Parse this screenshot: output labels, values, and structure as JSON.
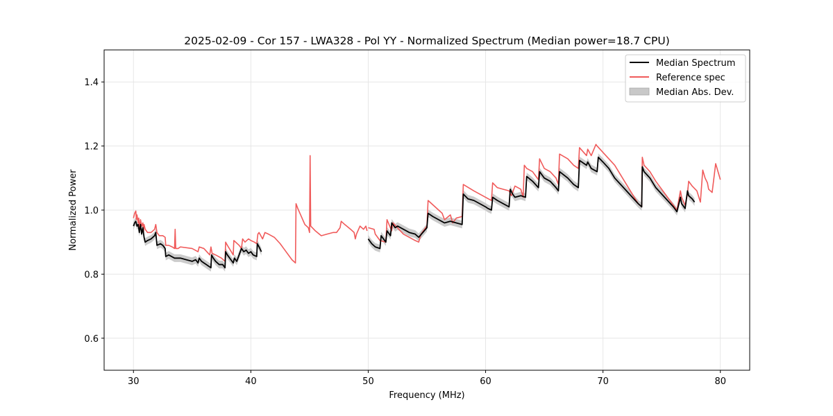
{
  "chart_data": {
    "type": "line",
    "title": "2025-02-09 - Cor 157 - LWA328 - Pol YY - Normalized Spectrum (Median power=18.7 CPU)",
    "xlabel": "Frequency (MHz)",
    "ylabel": "Normalized Power",
    "xlim": [
      27.5,
      82.5
    ],
    "ylim": [
      0.5,
      1.5
    ],
    "xticks": [
      30,
      40,
      50,
      60,
      70,
      80
    ],
    "yticks": [
      0.6,
      0.8,
      1.0,
      1.2,
      1.4
    ],
    "xtick_labels": [
      "30",
      "40",
      "50",
      "60",
      "70",
      "80"
    ],
    "ytick_labels": [
      "0.6",
      "0.8",
      "1.0",
      "1.2",
      "1.4"
    ],
    "grid": true,
    "legend_position": "top-right",
    "legend": [
      {
        "label": "Median Spectrum",
        "kind": "line",
        "color": "#000000"
      },
      {
        "label": "Reference spec",
        "kind": "line",
        "color": "#f05a5a"
      },
      {
        "label": "Median Abs. Dev.",
        "kind": "patch",
        "color": "#c8c8c8"
      }
    ],
    "series": [
      {
        "name": "Reference spec",
        "color": "#f05a5a",
        "segments": [
          {
            "x": [
              30.0,
              30.1,
              30.2,
              30.25,
              30.3,
              30.4,
              30.45,
              30.5,
              30.6,
              30.7,
              30.8,
              30.85,
              30.9,
              31.0,
              31.1,
              31.2,
              31.5,
              31.8,
              31.9,
              32.0,
              32.2,
              32.5,
              32.7,
              32.75,
              33.0,
              33.3,
              33.5,
              33.55,
              33.6,
              33.8,
              34.0,
              35.0,
              35.5,
              35.6,
              36.0,
              36.5,
              36.6,
              36.7,
              37.0,
              37.5,
              37.8,
              37.85,
              38.0,
              38.5,
              38.55,
              39.0,
              39.2,
              39.3,
              39.5,
              39.8,
              40.0,
              40.3,
              40.5,
              40.6,
              40.7,
              41.0,
              41.2,
              41.5,
              42.0,
              42.5,
              42.8,
              43.0,
              43.5,
              43.8,
              43.85,
              44.0,
              44.3,
              44.6,
              44.9,
              45.0,
              45.05,
              45.1,
              45.5,
              46.0,
              46.5,
              47.0,
              47.3,
              47.6,
              47.7,
              48.0,
              48.5,
              48.8,
              48.9,
              49.0,
              49.3,
              49.6,
              49.8,
              49.9
            ],
            "y": [
              0.975,
              0.99,
              0.997,
              0.97,
              0.985,
              0.96,
              0.975,
              0.94,
              0.97,
              0.95,
              0.96,
              0.93,
              0.955,
              0.94,
              0.935,
              0.93,
              0.93,
              0.94,
              0.955,
              0.93,
              0.92,
              0.92,
              0.915,
              0.89,
              0.89,
              0.885,
              0.88,
              0.94,
              0.88,
              0.88,
              0.885,
              0.88,
              0.87,
              0.885,
              0.88,
              0.86,
              0.885,
              0.865,
              0.86,
              0.85,
              0.84,
              0.9,
              0.89,
              0.86,
              0.905,
              0.89,
              0.88,
              0.91,
              0.9,
              0.91,
              0.905,
              0.9,
              0.895,
              0.925,
              0.93,
              0.91,
              0.93,
              0.925,
              0.915,
              0.895,
              0.88,
              0.87,
              0.845,
              0.835,
              1.02,
              1.005,
              0.98,
              0.955,
              0.945,
              0.93,
              1.17,
              0.95,
              0.935,
              0.92,
              0.925,
              0.93,
              0.93,
              0.945,
              0.965,
              0.955,
              0.94,
              0.93,
              0.91,
              0.925,
              0.95,
              0.94,
              0.95,
              0.935
            ]
          },
          {
            "x": [
              50.0,
              50.5,
              50.6,
              51.0,
              51.5,
              51.6,
              52.0,
              52.1,
              53.0,
              53.5,
              54.0,
              54.3,
              54.5,
              55.0,
              55.1,
              56.0,
              56.3,
              56.5,
              57.0,
              57.2,
              57.5,
              58.0,
              58.1,
              59.0,
              59.5,
              60.0,
              60.5,
              60.6,
              61.0,
              61.5,
              62.0,
              62.2,
              62.5,
              63.0,
              63.2,
              63.3,
              63.5,
              64.0,
              64.5,
              64.6,
              65.0,
              65.5,
              66.0,
              66.2,
              66.3,
              67.0,
              67.5,
              67.9,
              68.0,
              68.6,
              68.7,
              69.0,
              69.4,
              69.5,
              70.0,
              70.5,
              71.0,
              71.5,
              72.0,
              72.5,
              73.0,
              73.3,
              73.35,
              73.5,
              74.0,
              74.5,
              75.0,
              75.5,
              76.0,
              76.3,
              76.6,
              76.7,
              77.0,
              77.2,
              77.3,
              77.6,
              78.0,
              78.3,
              78.5,
              78.7,
              78.9,
              79.0,
              79.3,
              79.6,
              80.0
            ],
            "y": [
              0.945,
              0.94,
              0.925,
              0.905,
              0.9,
              0.97,
              0.935,
              0.96,
              0.925,
              0.915,
              0.905,
              0.9,
              0.925,
              0.95,
              1.03,
              1.0,
              0.99,
              0.97,
              0.985,
              0.96,
              0.975,
              0.98,
              1.08,
              1.06,
              1.05,
              1.04,
              1.03,
              1.085,
              1.07,
              1.065,
              1.06,
              1.045,
              1.075,
              1.065,
              1.04,
              1.14,
              1.13,
              1.12,
              1.095,
              1.16,
              1.13,
              1.12,
              1.1,
              1.08,
              1.175,
              1.16,
              1.14,
              1.13,
              1.195,
              1.17,
              1.19,
              1.17,
              1.205,
              1.2,
              1.18,
              1.16,
              1.14,
              1.11,
              1.08,
              1.05,
              1.02,
              1.01,
              1.165,
              1.14,
              1.12,
              1.09,
              1.065,
              1.04,
              1.015,
              1.0,
              1.06,
              1.04,
              1.015,
              1.05,
              1.09,
              1.075,
              1.06,
              1.025,
              1.125,
              1.1,
              1.085,
              1.065,
              1.055,
              1.145,
              1.095
            ]
          }
        ]
      },
      {
        "name": "Median Spectrum",
        "color": "#000000",
        "mad": 0.012,
        "segments": [
          {
            "x": [
              30.0,
              30.1,
              30.2,
              30.3,
              30.4,
              30.5,
              30.6,
              30.7,
              30.8,
              30.9,
              31.0,
              31.2,
              31.5,
              31.8,
              31.9,
              32.0,
              32.3,
              32.5,
              32.7,
              32.75,
              33.0,
              33.5,
              34.0,
              34.5,
              35.0,
              35.3,
              35.5,
              35.6,
              35.8,
              36.0,
              36.2,
              36.4,
              36.6,
              36.65,
              36.8,
              37.0,
              37.3,
              37.6,
              37.8,
              37.85,
              38.0,
              38.3,
              38.5,
              38.6,
              38.8,
              39.0,
              39.2,
              39.4,
              39.6,
              39.8,
              40.0,
              40.2,
              40.5,
              40.55,
              40.7,
              40.9
            ],
            "y": [
              0.95,
              0.96,
              0.965,
              0.95,
              0.955,
              0.93,
              0.955,
              0.925,
              0.945,
              0.915,
              0.9,
              0.905,
              0.91,
              0.92,
              0.93,
              0.89,
              0.895,
              0.89,
              0.88,
              0.855,
              0.86,
              0.85,
              0.85,
              0.845,
              0.84,
              0.845,
              0.835,
              0.85,
              0.84,
              0.835,
              0.83,
              0.825,
              0.82,
              0.86,
              0.85,
              0.84,
              0.83,
              0.83,
              0.82,
              0.87,
              0.86,
              0.845,
              0.835,
              0.85,
              0.84,
              0.86,
              0.88,
              0.87,
              0.875,
              0.865,
              0.87,
              0.86,
              0.855,
              0.895,
              0.885,
              0.87
            ]
          },
          {
            "x": [
              50.0,
              50.3,
              50.6,
              51.0,
              51.1,
              51.5,
              51.6,
              51.9,
              52.0,
              52.3,
              52.5,
              53.0,
              53.5,
              54.0,
              54.3,
              55.0,
              55.1,
              55.5,
              56.0,
              56.5,
              57.0,
              57.5,
              58.0,
              58.1,
              58.5,
              59.0,
              59.5,
              60.0,
              60.2,
              60.5,
              60.6,
              61.0,
              61.5,
              62.0,
              62.1,
              62.3,
              62.5,
              63.0,
              63.4,
              63.5,
              64.0,
              64.5,
              64.6,
              65.0,
              65.5,
              66.0,
              66.2,
              66.3,
              67.0,
              67.5,
              67.9,
              68.0,
              68.6,
              68.7,
              69.0,
              69.5,
              69.6,
              70.0,
              70.5,
              71.0,
              71.5,
              72.0,
              72.5,
              73.0,
              73.3,
              73.35,
              73.5,
              74.0,
              74.5,
              75.0,
              75.5,
              76.0,
              76.3,
              76.6,
              76.7,
              77.0,
              77.2,
              77.3,
              77.6,
              77.8
            ],
            "y": [
              0.91,
              0.895,
              0.885,
              0.88,
              0.92,
              0.9,
              0.935,
              0.92,
              0.96,
              0.945,
              0.95,
              0.94,
              0.93,
              0.925,
              0.915,
              0.945,
              0.99,
              0.98,
              0.97,
              0.96,
              0.965,
              0.96,
              0.955,
              1.05,
              1.035,
              1.03,
              1.02,
              1.01,
              1.005,
              1.0,
              1.04,
              1.03,
              1.02,
              1.01,
              1.065,
              1.05,
              1.04,
              1.045,
              1.04,
              1.105,
              1.09,
              1.07,
              1.12,
              1.1,
              1.09,
              1.07,
              1.06,
              1.12,
              1.1,
              1.08,
              1.07,
              1.155,
              1.14,
              1.15,
              1.13,
              1.12,
              1.165,
              1.15,
              1.13,
              1.1,
              1.08,
              1.06,
              1.04,
              1.02,
              1.01,
              1.135,
              1.12,
              1.1,
              1.07,
              1.05,
              1.03,
              1.01,
              0.995,
              1.04,
              1.02,
              1.005,
              1.06,
              1.045,
              1.035,
              1.025
            ]
          }
        ]
      }
    ]
  }
}
